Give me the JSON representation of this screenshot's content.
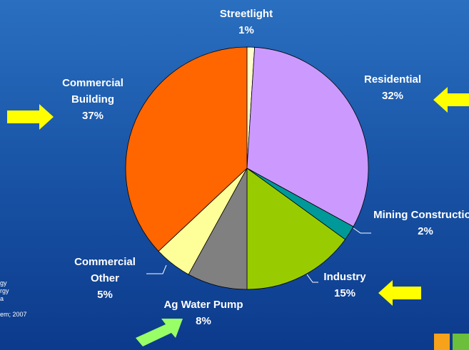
{
  "chart_data": {
    "type": "pie",
    "categories": [
      "Streetlight",
      "Residential",
      "Mining Construction",
      "Industry",
      "Ag Water Pump",
      "Commercial Other",
      "Commercial Building"
    ],
    "values": [
      1,
      32,
      2,
      15,
      8,
      5,
      37
    ],
    "value_labels": [
      "1%",
      "32%",
      "2%",
      "15%",
      "8%",
      "5%",
      "37%"
    ],
    "colors": [
      "#ffffcc",
      "#cc99ff",
      "#009999",
      "#99cc00",
      "#808080",
      "#ffff99",
      "#ff6600"
    ],
    "annotations": [
      "gy",
      "rgy",
      "a",
      "em; 2007"
    ]
  }
}
